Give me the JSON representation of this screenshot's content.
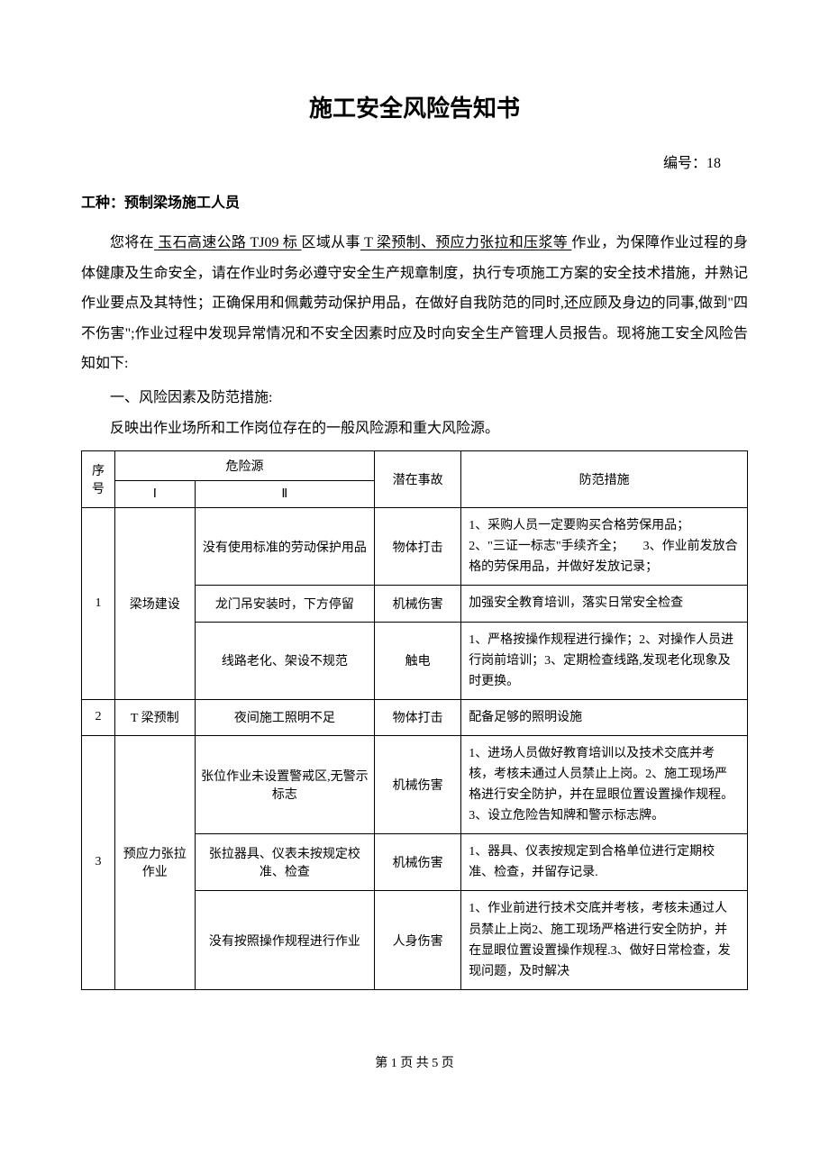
{
  "title": "施工安全风险告知书",
  "docNumber": "编号：18",
  "jobType": "工种：预制梁场施工人员",
  "para1_a": "您将在",
  "para1_u1": " 玉石高速公路 TJ09 标 ",
  "para1_b": "区域从事",
  "para1_u2": " T 梁预制、预应力张拉和压浆等 ",
  "para1_c": "作业，为保障作业过程的身体健康及生命安全，请在作业时务必遵守安全生产规章制度，执行专项施工方案的安全技术措施，并熟记作业要点及其特性；正确保用和佩戴劳动保护用品，在做好自我防范的同时,还应顾及身边的同事,做到\"四不伤害\";作业过程中发现异常情况和不安全因素时应及时向安全生产管理人员报告。现将施工安全风险告知如下:",
  "sectionHeading": "一、风险因素及防范措施:",
  "sectionDesc": "反映出作业场所和工作岗位存在的一般风险源和重大风险源。",
  "table": {
    "header": {
      "seq": "序号",
      "hazard": "危险源",
      "hazardI": "Ⅰ",
      "hazardII": "Ⅱ",
      "accident": "潜在事故",
      "measure": "防范措施"
    },
    "rows": [
      {
        "seq": "1",
        "catI": "梁场建设",
        "items": [
          {
            "catII": "没有使用标准的劳动保护用品",
            "accident": "物体打击",
            "measure": "1、采购人员一定要购买合格劳保用品；　　2、\"三证一标志\"手续齐全；　　3、作业前发放合格的劳保用品，并做好发放记录；"
          },
          {
            "catII": "龙门吊安装时，下方停留",
            "accident": "机械伤害",
            "measure": "加强安全教育培训，落实日常安全检查"
          },
          {
            "catII": "线路老化、架设不规范",
            "accident": "触电",
            "measure": "1、严格按操作规程进行操作；2、对操作人员进行岗前培训；3、定期检查线路,发现老化现象及时更换。"
          }
        ]
      },
      {
        "seq": "2",
        "catI": "T 梁预制",
        "items": [
          {
            "catII": "夜间施工照明不足",
            "accident": "物体打击",
            "measure": "配备足够的照明设施"
          }
        ]
      },
      {
        "seq": "3",
        "catI": "预应力张拉作业",
        "items": [
          {
            "catII": "张位作业未设置警戒区,无警示标志",
            "accident": "机械伤害",
            "measure": "1、进场人员做好教育培训以及技术交底并考核，考核未通过人员禁止上岗。2、施工现场严格进行安全防护，并在显眼位置设置操作规程。3、设立危险告知牌和警示标志牌。"
          },
          {
            "catII": "张拉器具、仪表未按规定校准、检查",
            "accident": "机械伤害",
            "measure": "1、器具、仪表按规定到合格单位进行定期校准、检查，并留存记录."
          },
          {
            "catII": "没有按照操作规程进行作业",
            "accident": "人身伤害",
            "measure": "1、作业前进行技术交底并考核，考核未通过人员禁止上岗2、施工现场严格进行安全防护，并在显眼位置设置操作规程.3、做好日常检查，发现问题，及时解决"
          }
        ]
      }
    ]
  },
  "footer": "第 1 页 共 5 页"
}
